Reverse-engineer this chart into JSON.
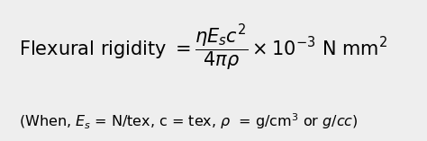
{
  "background_color": "#eeeeee",
  "fig_width": 4.74,
  "fig_height": 1.57,
  "dpi": 100,
  "main_fontsize": 15,
  "sub_fontsize": 11.5
}
